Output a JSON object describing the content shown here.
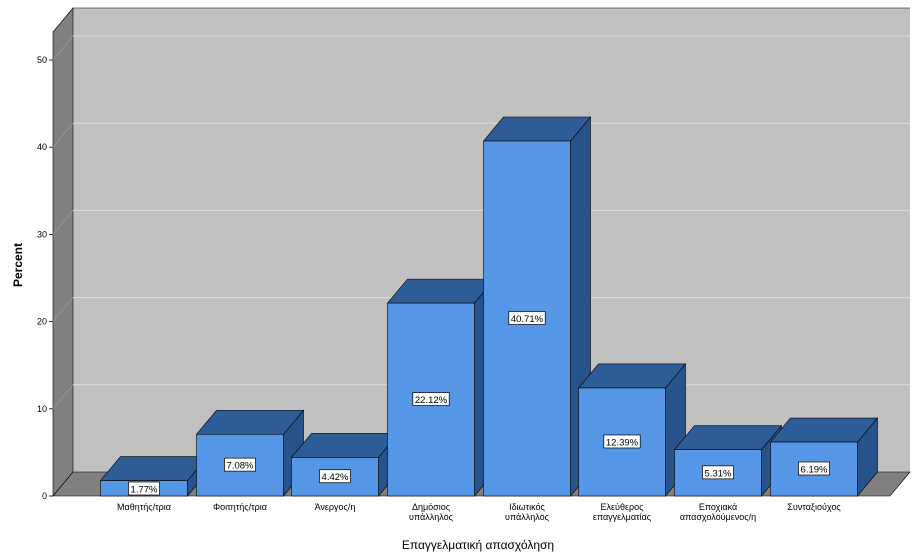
{
  "chart_data": {
    "type": "bar",
    "xlabel": "Επαγγελματική απασχόληση",
    "ylabel": "Percent",
    "ylim": [
      0,
      50
    ],
    "yticks": [
      0,
      10,
      20,
      30,
      40,
      50
    ],
    "grid": true,
    "categories": [
      [
        "Μαθητής/τρια"
      ],
      [
        "Φοιτητής/τρια"
      ],
      [
        "Άνεργος/η"
      ],
      [
        "Δημόσιος",
        "υπάλληλος"
      ],
      [
        "Ιδιωτικός",
        "υπάλληλος"
      ],
      [
        "Ελεύθερος",
        "επαγγελματίας"
      ],
      [
        "Εποχιακά",
        "απασχολούμενος/η"
      ],
      [
        "Συνταξιούχος"
      ]
    ],
    "values": [
      1.77,
      7.08,
      4.42,
      22.12,
      40.71,
      12.39,
      5.31,
      6.19
    ],
    "data_labels": [
      "1.77%",
      "7.08%",
      "4.42%",
      "22.12%",
      "40.71%",
      "12.39%",
      "5.31%",
      "6.19%"
    ],
    "colors": {
      "bar_front": "#5596e6",
      "bar_top": "#2e5c97",
      "bar_side": "#27538a",
      "back_wall": "#c0c0c0",
      "left_wall": "#808080",
      "floor": "#808080",
      "grid": "#dddddd"
    }
  }
}
